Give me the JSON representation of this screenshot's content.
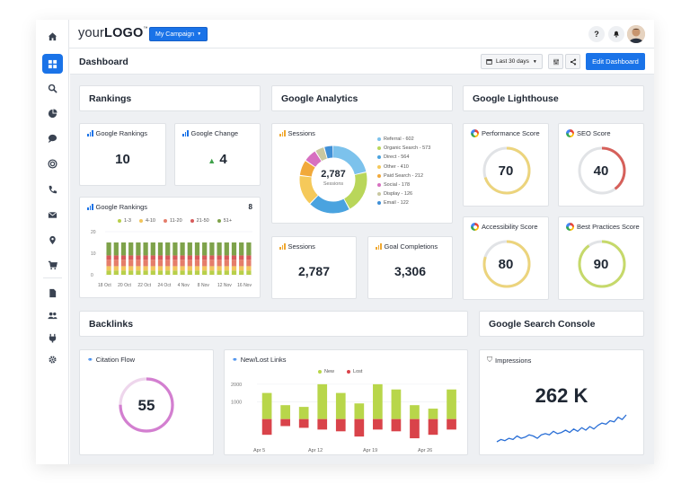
{
  "app": {
    "logo_prefix": "your",
    "logo_bold": "LOGO",
    "logo_tm": "™",
    "campaign_button": "My Campaign",
    "help_icon": "?",
    "brand_color": "#1a73e8"
  },
  "sidebar": {
    "items": [
      "home-icon",
      "dashboard-icon",
      "search-icon",
      "pie-chart-icon",
      "chat-icon",
      "target-icon",
      "phone-icon",
      "mail-icon",
      "location-icon",
      "cart-icon",
      "document-icon",
      "users-icon",
      "plug-icon",
      "gear-icon"
    ]
  },
  "header": {
    "title": "Dashboard",
    "date_range": "Last 30 days",
    "edit_button": "Edit Dashboard"
  },
  "sections": {
    "rankings": "Rankings",
    "analytics": "Google Analytics",
    "lighthouse": "Google Lighthouse",
    "backlinks": "Backlinks",
    "search_console": "Google Search Console"
  },
  "rankings": {
    "google_rankings_title": "Google Rankings",
    "google_rankings_value": "10",
    "google_change_title": "Google Change",
    "google_change_value": "4",
    "chart_title": "Google Rankings",
    "chart_count": "8"
  },
  "analytics": {
    "sessions_title": "Sessions",
    "sessions_total": "2,787",
    "sessions_label": "Sessions",
    "sessions_card_title": "Sessions",
    "sessions_card_value": "2,787",
    "goals_title": "Goal Completions",
    "goals_value": "3,306"
  },
  "lighthouse": {
    "performance_title": "Performance Score",
    "performance_value": "70",
    "seo_title": "SEO Score",
    "seo_value": "40",
    "accessibility_title": "Accessibility Score",
    "accessibility_value": "80",
    "best_practices_title": "Best Practices Score",
    "best_practices_value": "90",
    "gauge_track_color": "#e1e3e6",
    "gauge_colors": {
      "performance": "#ecd47c",
      "seo": "#d6605a",
      "accessibility": "#ecd47c",
      "best_practices": "#c6d96a"
    }
  },
  "backlinks": {
    "citation_title": "Citation Flow",
    "citation_value": "55",
    "citation_fraction": 0.75,
    "new_lost_title": "New/Lost Links"
  },
  "search_console": {
    "impressions_title": "Impressions",
    "impressions_value": "262 K"
  },
  "chart_data": [
    {
      "type": "pie",
      "title": "Sessions",
      "categories": [
        "Referral",
        "Organic Search",
        "Direct",
        "Other",
        "Paid Search",
        "Social",
        "Display",
        "Email"
      ],
      "values": [
        602,
        573,
        564,
        410,
        212,
        178,
        126,
        122
      ],
      "labels": [
        "Referral - 602",
        "Organic Search - 573",
        "Direct - 564",
        "Other - 410",
        "Paid Search - 212",
        "Social - 178",
        "Display - 126",
        "Email - 122"
      ],
      "colors": [
        "#7cc2ec",
        "#b9d65a",
        "#4aa3df",
        "#f5c95a",
        "#f1a93a",
        "#d770c0",
        "#c9c8a0",
        "#3f8fd6"
      ]
    },
    {
      "type": "bar",
      "title": "Google Rankings",
      "legend": [
        "1-3",
        "4-10",
        "11-20",
        "21-50",
        "51+"
      ],
      "colors": [
        "#b8cf4a",
        "#f2c55c",
        "#e57d6a",
        "#d75a5a",
        "#7ea24a"
      ],
      "x_tick_labels": [
        "18 Oct",
        "20 Oct",
        "22 Oct",
        "24 Oct",
        "4 Nov",
        "8 Nov",
        "12 Nov",
        "16 Nov"
      ],
      "y_tick_labels": [
        "20",
        "10",
        "0"
      ],
      "ylim": [
        0,
        20
      ],
      "bar_count": 20,
      "stack_values": [
        2,
        2,
        3,
        2,
        6
      ]
    },
    {
      "type": "bar",
      "title": "New/Lost Links",
      "series": [
        {
          "name": "New",
          "color": "#b8d64a",
          "values": [
            1500,
            800,
            700,
            2000,
            1500,
            900,
            2000,
            1700,
            800,
            600,
            1700
          ]
        },
        {
          "name": "Lost",
          "color": "#d9434a",
          "values": [
            -900,
            -400,
            -500,
            -600,
            -700,
            -1000,
            -600,
            -700,
            -1100,
            -900,
            -600
          ]
        }
      ],
      "x_tick_labels": [
        "Apr 5",
        "Apr 12",
        "Apr 19",
        "Apr 26"
      ],
      "y_tick_labels": [
        "2000",
        "1000"
      ],
      "ylim": [
        -1200,
        2200
      ]
    },
    {
      "type": "line",
      "title": "Impressions",
      "color": "#2a6fd6",
      "values": [
        3,
        5,
        4,
        6,
        5,
        8,
        6,
        7,
        9,
        8,
        6,
        9,
        10,
        9,
        12,
        10,
        11,
        13,
        11,
        14,
        12,
        15,
        13,
        16,
        14,
        17,
        19,
        18,
        21,
        20,
        24,
        22,
        26
      ]
    }
  ]
}
